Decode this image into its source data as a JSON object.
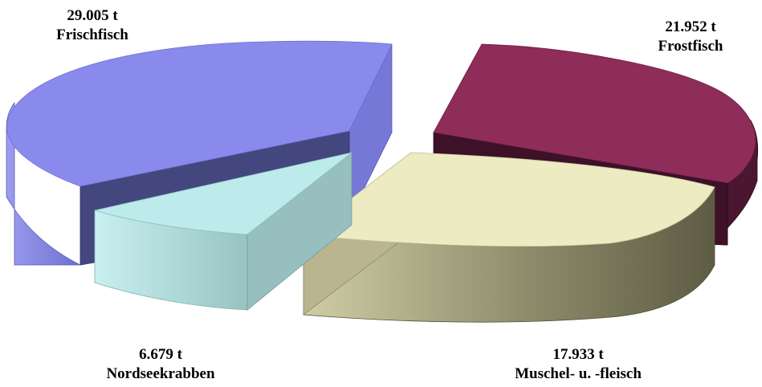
{
  "chart_data": {
    "type": "pie",
    "style": "3d-exploded",
    "unit": "t",
    "slices": [
      {
        "name": "Frischfisch",
        "value": 29005,
        "value_label": "29.005 t",
        "color": "#8a8bea"
      },
      {
        "name": "Frostfisch",
        "value": 21952,
        "value_label": "21.952 t",
        "color": "#8e2c5a"
      },
      {
        "name": "Muschel- u. -fleisch",
        "value": 17933,
        "value_label": "17.933 t",
        "color": "#ecebc2"
      },
      {
        "name": "Nordseekrabben",
        "value": 6679,
        "value_label": "6.679 t",
        "color": "#bdeaea"
      }
    ]
  }
}
